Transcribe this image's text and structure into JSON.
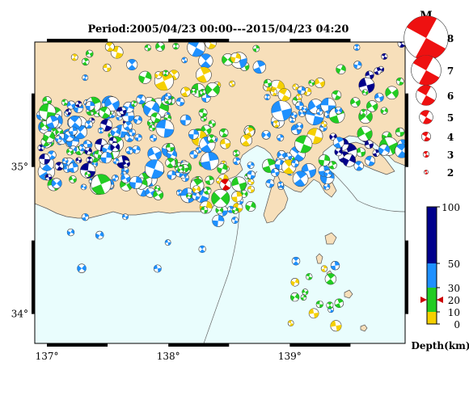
{
  "title": "Period:2005/04/23 00:00---2015/04/23 04:20",
  "map": {
    "lon_range": [
      136.9,
      139.95
    ],
    "lat_range": [
      33.8,
      35.85
    ],
    "lon_ticks": [
      {
        "value": 137,
        "label": "137°"
      },
      {
        "value": 138,
        "label": "138°"
      },
      {
        "value": 139,
        "label": "139°"
      }
    ],
    "lat_ticks": [
      {
        "value": 35,
        "label": "35°"
      },
      {
        "value": 34,
        "label": "34°"
      }
    ],
    "colors": {
      "sea": "#e9fdfd",
      "land": "#f7dfba",
      "coast": "#555555"
    }
  },
  "magnitude_legend": {
    "title": "M",
    "entries": [
      {
        "label": "8",
        "m": 8
      },
      {
        "label": "7",
        "m": 7
      },
      {
        "label": "6",
        "m": 6
      },
      {
        "label": "5",
        "m": 5
      },
      {
        "label": "4",
        "m": 4
      },
      {
        "label": "3",
        "m": 3
      },
      {
        "label": "2",
        "m": 2
      }
    ],
    "color": "#ee1111"
  },
  "depth_scale": {
    "title": "Depth(km)",
    "labels": [
      "100",
      "50",
      "30",
      "20",
      "10",
      "0"
    ],
    "bands": [
      {
        "from": 0,
        "to": 10,
        "color": "#f5d000"
      },
      {
        "from": 10,
        "to": 30,
        "color": "#22cc22"
      },
      {
        "from": 30,
        "to": 50,
        "color": "#1e90ff"
      },
      {
        "from": 50,
        "to": 100,
        "color": "#00008b"
      }
    ],
    "marker_depth": 20,
    "marker_color": "#cc0000"
  },
  "highlight_event": {
    "lon": 138.47,
    "lat": 34.88,
    "depth": 20,
    "m": 3.5,
    "color": "#dd0000"
  }
}
